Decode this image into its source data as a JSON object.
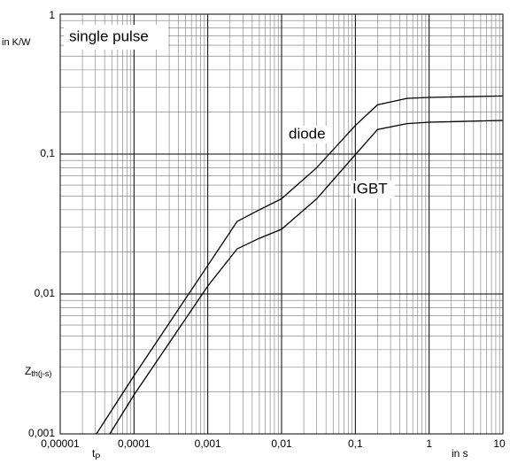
{
  "chart_data": {
    "type": "line",
    "annotation": "single pulse",
    "y_unit": "in K/W",
    "x_unit": "in s",
    "y_label": {
      "text": "Z",
      "subscript": "th(j-s)"
    },
    "x_label": {
      "text": "t",
      "subscript": "P"
    },
    "log_x": true,
    "log_y": true,
    "grid": true,
    "xlim": [
      1e-05,
      10
    ],
    "ylim": [
      0.001,
      1
    ],
    "xticks": [
      {
        "value": 1e-05,
        "label": "0,00001"
      },
      {
        "value": 0.0001,
        "label": "0,0001"
      },
      {
        "value": 0.001,
        "label": "0,001"
      },
      {
        "value": 0.01,
        "label": "0,01"
      },
      {
        "value": 0.1,
        "label": "0,1"
      },
      1,
      10
    ],
    "yticks": [
      {
        "value": 0.001,
        "label": "0,001"
      },
      {
        "value": 0.01,
        "label": "0,01"
      },
      {
        "value": 0.1,
        "label": "0,1"
      },
      1
    ],
    "series": [
      {
        "name": "diode",
        "color": "#000000",
        "x": [
          3.1e-05,
          0.0001,
          0.001,
          0.0025,
          0.005,
          0.01,
          0.03,
          0.1,
          0.2,
          0.5,
          1,
          10
        ],
        "values": [
          0.001,
          0.0026,
          0.016,
          0.033,
          0.04,
          0.048,
          0.08,
          0.16,
          0.225,
          0.25,
          0.254,
          0.26
        ]
      },
      {
        "name": "IGBT",
        "color": "#000000",
        "x": [
          4.7e-05,
          0.0001,
          0.001,
          0.0025,
          0.005,
          0.01,
          0.03,
          0.1,
          0.2,
          0.5,
          1,
          10
        ],
        "values": [
          0.001,
          0.0019,
          0.0114,
          0.021,
          0.025,
          0.029,
          0.048,
          0.099,
          0.15,
          0.165,
          0.169,
          0.174
        ]
      }
    ]
  }
}
